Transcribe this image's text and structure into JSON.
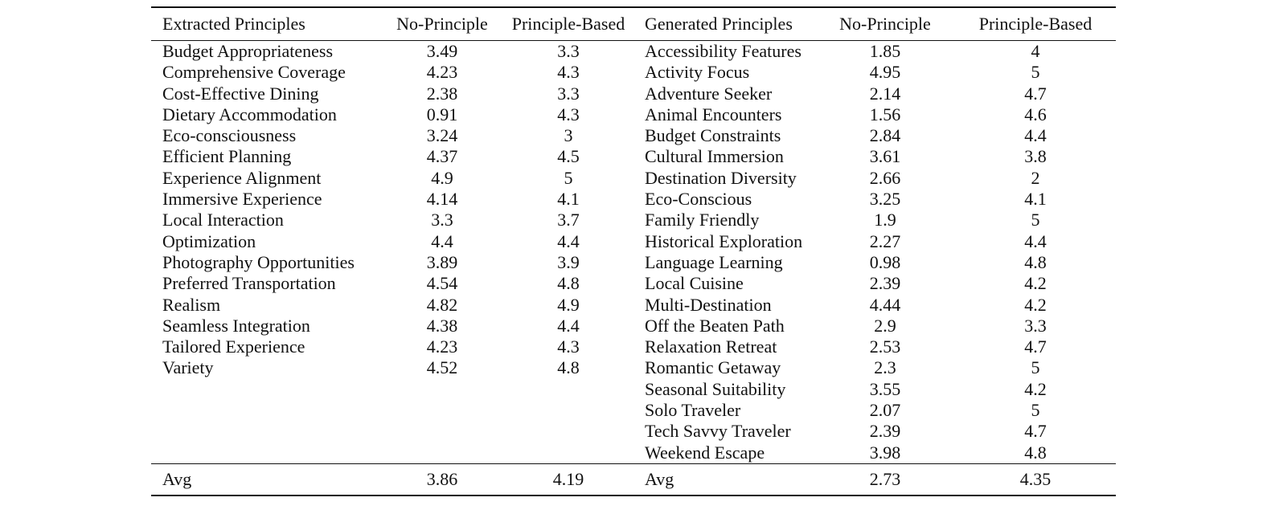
{
  "headers": {
    "extracted": "Extracted Principles",
    "no_principle_1": "No-Principle",
    "principle_based_1": "Principle-Based",
    "generated": "Generated Principles",
    "no_principle_2": "No-Principle",
    "principle_based_2": "Principle-Based"
  },
  "rows": [
    {
      "e_name": "Budget Appropriateness",
      "e_np": "3.49",
      "e_pb": "3.3",
      "g_name": "Accessibility Features",
      "g_np": "1.85",
      "g_pb": "4"
    },
    {
      "e_name": "Comprehensive Coverage",
      "e_np": "4.23",
      "e_pb": "4.3",
      "g_name": "Activity Focus",
      "g_np": "4.95",
      "g_pb": "5"
    },
    {
      "e_name": "Cost-Effective Dining",
      "e_np": "2.38",
      "e_pb": "3.3",
      "g_name": "Adventure Seeker",
      "g_np": "2.14",
      "g_pb": "4.7"
    },
    {
      "e_name": "Dietary Accommodation",
      "e_np": "0.91",
      "e_pb": "4.3",
      "g_name": "Animal Encounters",
      "g_np": "1.56",
      "g_pb": "4.6"
    },
    {
      "e_name": "Eco-consciousness",
      "e_np": "3.24",
      "e_pb": "3",
      "g_name": "Budget Constraints",
      "g_np": "2.84",
      "g_pb": "4.4"
    },
    {
      "e_name": "Efficient Planning",
      "e_np": "4.37",
      "e_pb": "4.5",
      "g_name": "Cultural Immersion",
      "g_np": "3.61",
      "g_pb": "3.8"
    },
    {
      "e_name": "Experience Alignment",
      "e_np": "4.9",
      "e_pb": "5",
      "g_name": "Destination Diversity",
      "g_np": "2.66",
      "g_pb": "2"
    },
    {
      "e_name": "Immersive Experience",
      "e_np": "4.14",
      "e_pb": "4.1",
      "g_name": "Eco-Conscious",
      "g_np": "3.25",
      "g_pb": "4.1"
    },
    {
      "e_name": "Local Interaction",
      "e_np": "3.3",
      "e_pb": "3.7",
      "g_name": "Family Friendly",
      "g_np": "1.9",
      "g_pb": "5"
    },
    {
      "e_name": "Optimization",
      "e_np": "4.4",
      "e_pb": "4.4",
      "g_name": "Historical Exploration",
      "g_np": "2.27",
      "g_pb": "4.4"
    },
    {
      "e_name": "Photography Opportunities",
      "e_np": "3.89",
      "e_pb": "3.9",
      "g_name": "Language Learning",
      "g_np": "0.98",
      "g_pb": "4.8"
    },
    {
      "e_name": "Preferred Transportation",
      "e_np": "4.54",
      "e_pb": "4.8",
      "g_name": "Local Cuisine",
      "g_np": "2.39",
      "g_pb": "4.2"
    },
    {
      "e_name": "Realism",
      "e_np": "4.82",
      "e_pb": "4.9",
      "g_name": "Multi-Destination",
      "g_np": "4.44",
      "g_pb": "4.2"
    },
    {
      "e_name": "Seamless Integration",
      "e_np": "4.38",
      "e_pb": "4.4",
      "g_name": "Off the Beaten Path",
      "g_np": "2.9",
      "g_pb": "3.3"
    },
    {
      "e_name": "Tailored Experience",
      "e_np": "4.23",
      "e_pb": "4.3",
      "g_name": "Relaxation Retreat",
      "g_np": "2.53",
      "g_pb": "4.7"
    },
    {
      "e_name": "Variety",
      "e_np": "4.52",
      "e_pb": "4.8",
      "g_name": "Romantic Getaway",
      "g_np": "2.3",
      "g_pb": "5"
    },
    {
      "e_name": "",
      "e_np": "",
      "e_pb": "",
      "g_name": "Seasonal Suitability",
      "g_np": "3.55",
      "g_pb": "4.2"
    },
    {
      "e_name": "",
      "e_np": "",
      "e_pb": "",
      "g_name": "Solo Traveler",
      "g_np": "2.07",
      "g_pb": "5"
    },
    {
      "e_name": "",
      "e_np": "",
      "e_pb": "",
      "g_name": "Tech Savvy Traveler",
      "g_np": "2.39",
      "g_pb": "4.7"
    },
    {
      "e_name": "",
      "e_np": "",
      "e_pb": "",
      "g_name": "Weekend Escape",
      "g_np": "3.98",
      "g_pb": "4.8"
    }
  ],
  "bold_cells": [
    {
      "row": 6,
      "col": "e_np"
    },
    {
      "row": 6,
      "col": "e_pb"
    },
    {
      "row": 1,
      "col": "g_np"
    },
    {
      "row": 1,
      "col": "g_pb"
    },
    {
      "row": 8,
      "col": "g_pb"
    },
    {
      "row": 15,
      "col": "g_pb"
    }
  ],
  "footer": {
    "e_label": "Avg",
    "e_np": "3.86",
    "e_pb": "4.19",
    "g_label": "Avg",
    "g_np": "2.73",
    "g_pb": "4.35"
  }
}
